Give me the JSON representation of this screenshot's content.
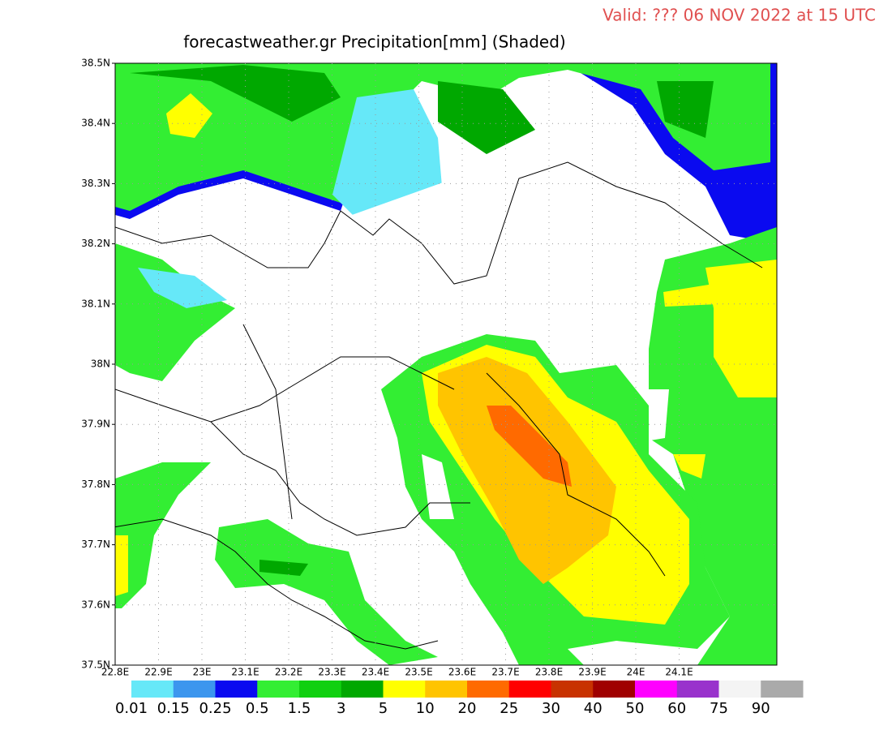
{
  "header": {
    "valid": "Valid: ??? 06 NOV 2022 at 15 UTC",
    "title": "forecastweather.gr Precipitation[mm] (Shaded)"
  },
  "map": {
    "lat_labels": [
      "38.5N",
      "38.4N",
      "38.3N",
      "38.2N",
      "38.1N",
      "38N",
      "37.9N",
      "37.8N",
      "37.7N",
      "37.6N",
      "37.5N"
    ],
    "lon_labels": [
      "22.8E",
      "22.9E",
      "23E",
      "23.1E",
      "23.2E",
      "23.3E",
      "23.4E",
      "23.5E",
      "23.6E",
      "23.7E",
      "23.8E",
      "23.9E",
      "24E",
      "24.1E"
    ]
  },
  "legend": {
    "labels": [
      "0.01",
      "0.15",
      "0.25",
      "0.5",
      "1.5",
      "3",
      "5",
      "10",
      "20",
      "25",
      "30",
      "40",
      "50",
      "60",
      "75",
      "90"
    ],
    "colors": [
      "#66e8f8",
      "#3c96ee",
      "#0a0af0",
      "#33ee33",
      "#10d010",
      "#00a800",
      "#ffff00",
      "#ffc400",
      "#ff6a00",
      "#ff0000",
      "#c83200",
      "#a00000",
      "#ff00ff",
      "#9932cc",
      "#f4f4f4",
      "#aaaaaa"
    ]
  }
}
